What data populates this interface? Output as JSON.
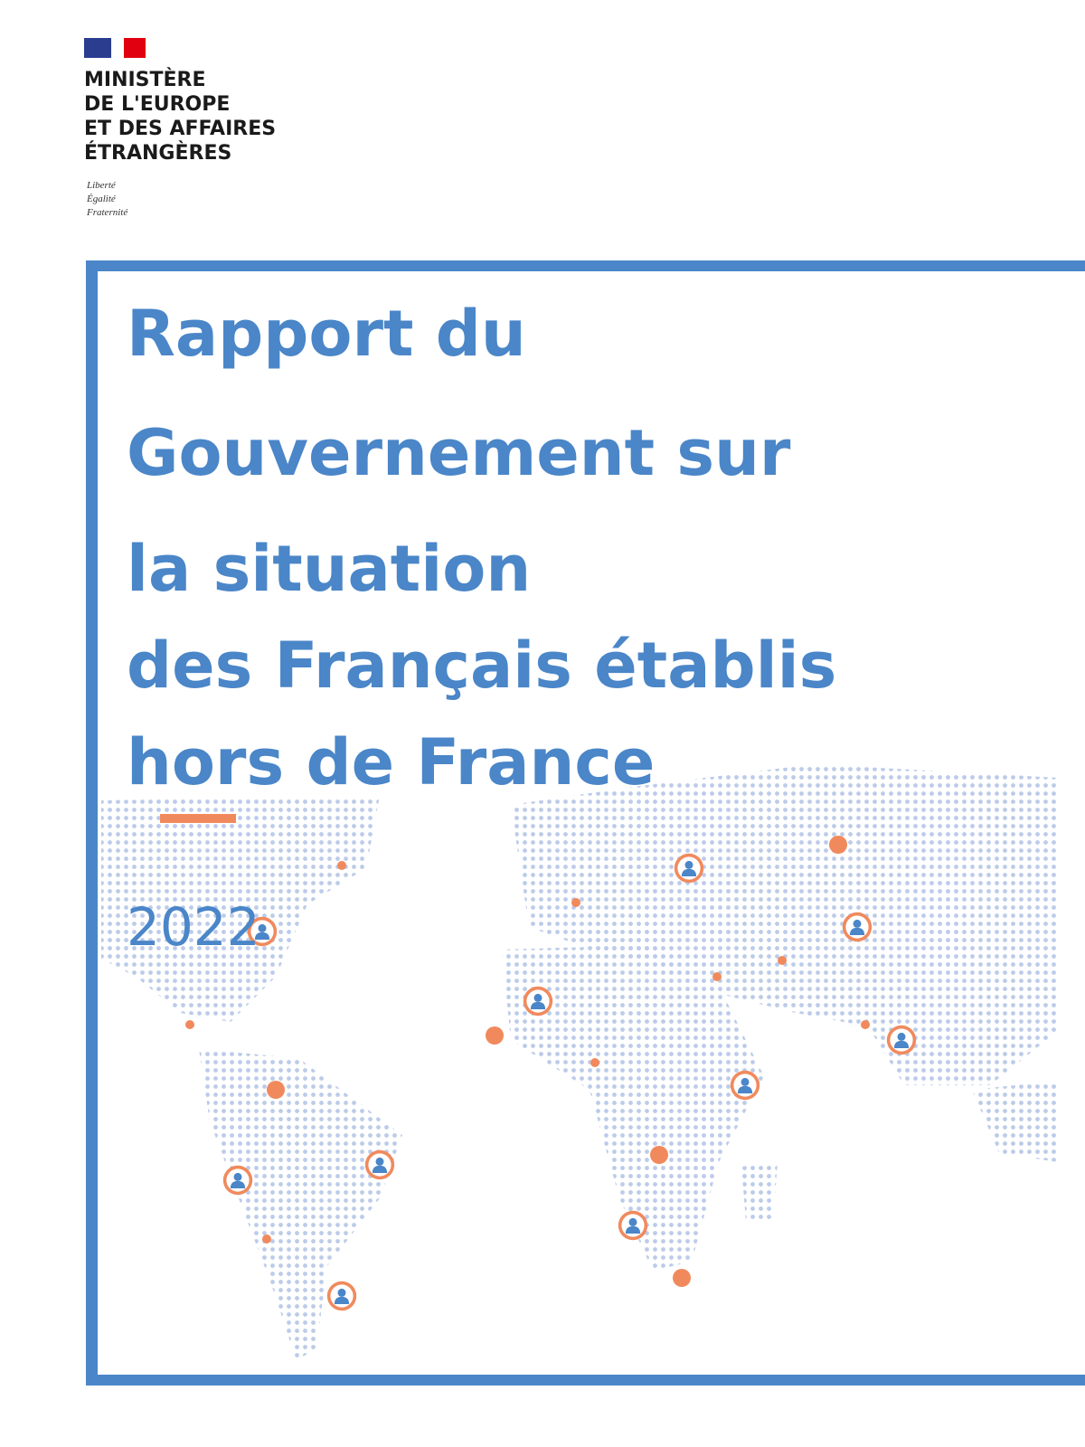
{
  "ministry": [
    "MINISTÈRE",
    "DE L'EUROPE",
    "ET DES AFFAIRES",
    "ÉTRANGÈRES"
  ],
  "motto": [
    "Liberté",
    "Égalité",
    "Fraternité"
  ],
  "title": [
    "Rapport du",
    "Gouvernement sur",
    "la situation",
    "des Français établis",
    "hors de France"
  ],
  "year": "2022"
}
